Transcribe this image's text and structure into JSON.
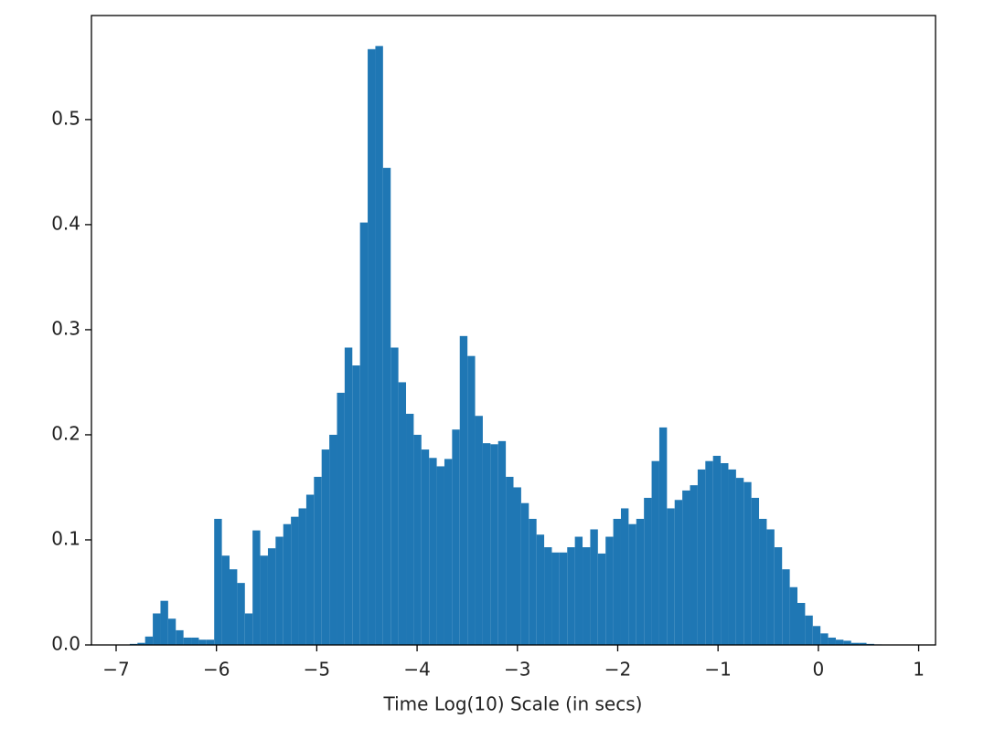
{
  "chart_data": {
    "type": "histogram",
    "x_label": "Time Log(10) Scale (in secs)",
    "color": "#1f77b4",
    "bins": [
      -6.864,
      -6.7875,
      -6.711,
      -6.6345,
      -6.558,
      -6.4815,
      -6.405,
      -6.3285,
      -6.252,
      -6.1755,
      -6.099,
      -6.0225,
      -5.946,
      -5.8695,
      -5.793,
      -5.7165,
      -5.64,
      -5.5635,
      -5.487,
      -5.4105,
      -5.334,
      -5.2575,
      -5.181,
      -5.1045,
      -5.028,
      -4.9515,
      -4.875,
      -4.7985,
      -4.722,
      -4.6455,
      -4.569,
      -4.4925,
      -4.416,
      -4.3395,
      -4.263,
      -4.1865,
      -4.11,
      -4.0335,
      -3.957,
      -3.8805,
      -3.804,
      -3.7275,
      -3.651,
      -3.5745,
      -3.498,
      -3.4215,
      -3.345,
      -3.2685,
      -3.192,
      -3.1155,
      -3.039,
      -2.9625,
      -2.886,
      -2.8095,
      -2.733,
      -2.6565,
      -2.58,
      -2.5035,
      -2.427,
      -2.3505,
      -2.274,
      -2.1975,
      -2.121,
      -2.0445,
      -1.968,
      -1.8915,
      -1.815,
      -1.7385,
      -1.662,
      -1.5855,
      -1.509,
      -1.4325,
      -1.356,
      -1.2795,
      -1.203,
      -1.1265,
      -1.05,
      -0.9735,
      -0.897,
      -0.8205,
      -0.744,
      -0.6675,
      -0.591,
      -0.5145,
      -0.438,
      -0.3615,
      -0.285,
      -0.2085,
      -0.132,
      -0.0555,
      0.021,
      0.0975,
      0.174,
      0.2505,
      0.327,
      0.4035,
      0.48,
      0.5565,
      0.633,
      0.7095,
      0.786
    ],
    "values": [
      0.001,
      0.002,
      0.008,
      0.03,
      0.042,
      0.025,
      0.014,
      0.007,
      0.007,
      0.005,
      0.005,
      0.12,
      0.085,
      0.072,
      0.059,
      0.03,
      0.109,
      0.085,
      0.092,
      0.103,
      0.115,
      0.122,
      0.13,
      0.143,
      0.16,
      0.186,
      0.2,
      0.24,
      0.283,
      0.266,
      0.402,
      0.567,
      0.57,
      0.454,
      0.283,
      0.25,
      0.22,
      0.2,
      0.186,
      0.178,
      0.17,
      0.177,
      0.205,
      0.294,
      0.275,
      0.218,
      0.192,
      0.191,
      0.194,
      0.16,
      0.15,
      0.135,
      0.12,
      0.105,
      0.093,
      0.088,
      0.088,
      0.093,
      0.103,
      0.093,
      0.11,
      0.087,
      0.103,
      0.12,
      0.13,
      0.115,
      0.12,
      0.14,
      0.175,
      0.207,
      0.13,
      0.138,
      0.147,
      0.152,
      0.167,
      0.175,
      0.18,
      0.173,
      0.167,
      0.159,
      0.155,
      0.14,
      0.12,
      0.11,
      0.093,
      0.072,
      0.055,
      0.04,
      0.028,
      0.018,
      0.011,
      0.007,
      0.005,
      0.004,
      0.002,
      0.002,
      0.001,
      0.0005,
      0.0003,
      0.0002
    ],
    "xlim": [
      -7.246,
      1.168
    ],
    "ylim": [
      0,
      0.599
    ],
    "xticks": [
      {
        "value": -7,
        "label": "−7"
      },
      {
        "value": -6,
        "label": "−6"
      },
      {
        "value": -5,
        "label": "−5"
      },
      {
        "value": -4,
        "label": "−4"
      },
      {
        "value": -3,
        "label": "−3"
      },
      {
        "value": -2,
        "label": "−2"
      },
      {
        "value": -1,
        "label": "−1"
      },
      {
        "value": 0,
        "label": "0"
      },
      {
        "value": 1,
        "label": "1"
      }
    ],
    "yticks": [
      {
        "value": 0,
        "label": "0.0"
      },
      0.1,
      0.2,
      0.3,
      0.4,
      0.5
    ],
    "grid": false
  }
}
